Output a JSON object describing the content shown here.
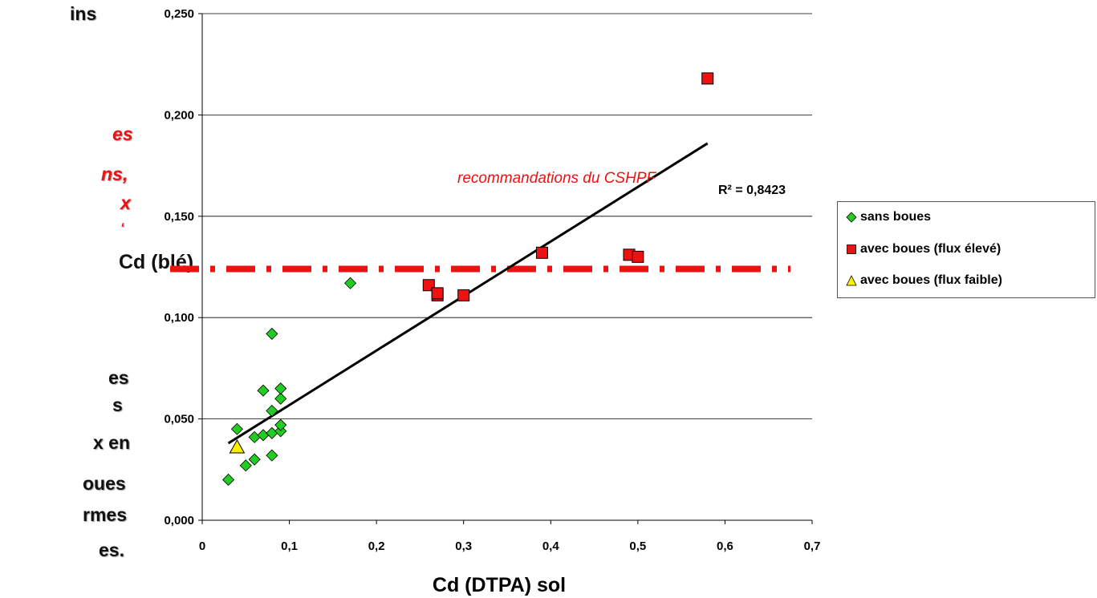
{
  "slide_text": {
    "black_top": "ins",
    "red_lines": [
      "es",
      "ns,",
      "x",
      "‘"
    ],
    "black_bottom": [
      "es",
      "s",
      "x en",
      "oues",
      "rmes",
      "es."
    ]
  },
  "chart_data": {
    "type": "scatter",
    "xlabel": "Cd (DTPA)  sol",
    "ylabel": "Cd  (blé)",
    "xlim": [
      0,
      0.7
    ],
    "ylim": [
      0,
      0.25
    ],
    "x_ticks": [
      "0",
      "0,1",
      "0,2",
      "0,3",
      "0,4",
      "0,5",
      "0,6",
      "0,7"
    ],
    "y_ticks": [
      "0,000",
      "0,050",
      "0,100",
      "0,150",
      "0,200",
      "0,250"
    ],
    "grid": "horizontal",
    "legend_position": "right",
    "series": [
      {
        "name": "sans boues",
        "marker": "diamond",
        "color": "#22cc22",
        "points": [
          [
            0.03,
            0.02
          ],
          [
            0.04,
            0.045
          ],
          [
            0.05,
            0.027
          ],
          [
            0.06,
            0.03
          ],
          [
            0.06,
            0.041
          ],
          [
            0.07,
            0.042
          ],
          [
            0.07,
            0.064
          ],
          [
            0.08,
            0.032
          ],
          [
            0.08,
            0.043
          ],
          [
            0.08,
            0.054
          ],
          [
            0.08,
            0.092
          ],
          [
            0.09,
            0.044
          ],
          [
            0.09,
            0.047
          ],
          [
            0.09,
            0.06
          ],
          [
            0.09,
            0.065
          ],
          [
            0.17,
            0.117
          ]
        ]
      },
      {
        "name": "avec boues (flux élevé)",
        "marker": "square",
        "color": "#ee1111",
        "points": [
          [
            0.26,
            0.116
          ],
          [
            0.27,
            0.111
          ],
          [
            0.27,
            0.112
          ],
          [
            0.3,
            0.111
          ],
          [
            0.39,
            0.132
          ],
          [
            0.49,
            0.131
          ],
          [
            0.5,
            0.13
          ],
          [
            0.58,
            0.218
          ]
        ]
      },
      {
        "name": "avec boues (flux faible)",
        "marker": "triangle",
        "color": "#ffee00",
        "points": [
          [
            0.04,
            0.036
          ]
        ]
      }
    ],
    "trendline": {
      "x": [
        0.03,
        0.58
      ],
      "y": [
        0.038,
        0.186
      ],
      "color": "#000000"
    },
    "reference_line": {
      "y": 0.124,
      "label": "recommandations du CSHPF",
      "color": "#ee1111",
      "style": "dash-dot"
    },
    "r2_label": "R² = 0,8423"
  }
}
